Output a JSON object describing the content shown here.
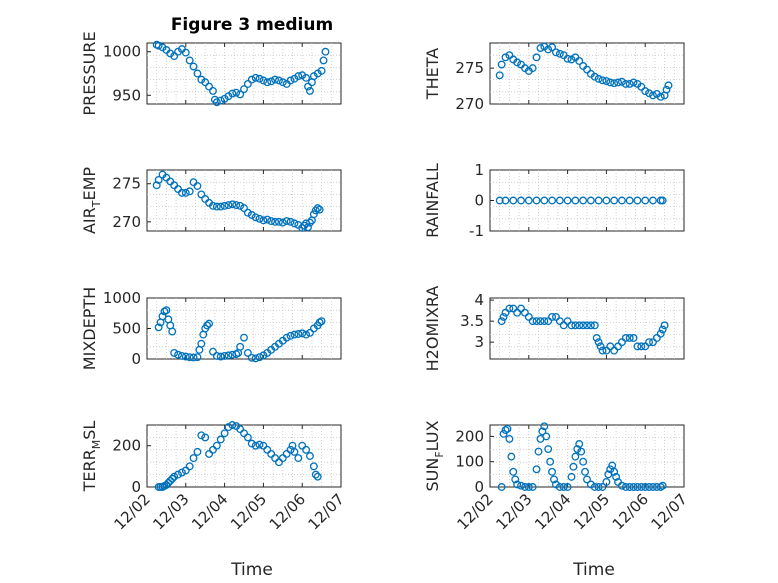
{
  "figure": {
    "title": "Figure 3 medium",
    "x_label": "Time",
    "x_ticks": [
      "12/02",
      "12/03",
      "12/04",
      "12/05",
      "12/06",
      "12/07"
    ],
    "marker_color": "#0072bd"
  },
  "chart_data": [
    {
      "type": "scatter",
      "ylabel": "PRESSURE",
      "ylim": [
        940,
        1010
      ],
      "yticks": [
        "950",
        "1000"
      ],
      "grid": true,
      "x": [
        0.25,
        0.3,
        0.4,
        0.5,
        0.6,
        0.7,
        0.8,
        0.9,
        1.0,
        1.1,
        1.2,
        1.3,
        1.4,
        1.5,
        1.6,
        1.7,
        1.75,
        1.8,
        1.9,
        2.0,
        2.1,
        2.2,
        2.3,
        2.4,
        2.5,
        2.6,
        2.7,
        2.8,
        2.9,
        3.0,
        3.1,
        3.2,
        3.3,
        3.4,
        3.5,
        3.6,
        3.7,
        3.8,
        3.9,
        4.0,
        4.1,
        4.15,
        4.2,
        4.25,
        4.3,
        4.4,
        4.5,
        4.55,
        4.6
      ],
      "y": [
        1008,
        1007,
        1005,
        1002,
        998,
        995,
        1000,
        1003,
        999,
        990,
        983,
        975,
        968,
        965,
        960,
        955,
        945,
        942,
        944,
        946,
        949,
        952,
        953,
        951,
        957,
        963,
        968,
        970,
        969,
        967,
        965,
        966,
        968,
        967,
        965,
        963,
        967,
        969,
        972,
        973,
        970,
        960,
        955,
        965,
        972,
        975,
        978,
        990,
        1000
      ]
    },
    {
      "type": "scatter",
      "ylabel": "THETA",
      "ylim": [
        270,
        278.5
      ],
      "yticks": [
        "270",
        "275"
      ],
      "grid": true,
      "x": [
        0.25,
        0.3,
        0.4,
        0.5,
        0.6,
        0.7,
        0.8,
        0.9,
        1.0,
        1.1,
        1.2,
        1.3,
        1.4,
        1.5,
        1.6,
        1.7,
        1.8,
        1.9,
        2.0,
        2.1,
        2.2,
        2.3,
        2.4,
        2.5,
        2.6,
        2.7,
        2.8,
        2.9,
        3.0,
        3.1,
        3.2,
        3.3,
        3.4,
        3.5,
        3.6,
        3.7,
        3.8,
        3.9,
        4.0,
        4.1,
        4.2,
        4.3,
        4.4,
        4.5,
        4.55,
        4.6
      ],
      "y": [
        274,
        275.5,
        276.5,
        276.8,
        276.2,
        275.8,
        275.5,
        275,
        274.6,
        275,
        276.5,
        277.8,
        278,
        277.6,
        277.9,
        277.2,
        277,
        276.8,
        276.3,
        276.2,
        276.5,
        276,
        275.3,
        274.8,
        274.2,
        273.8,
        273.5,
        273.3,
        273.2,
        273,
        272.9,
        273,
        273.1,
        272.8,
        272.8,
        273,
        272.8,
        272.4,
        271.8,
        271.5,
        271.2,
        271.4,
        271,
        271.2,
        272,
        272.6
      ]
    },
    {
      "type": "scatter",
      "ylabel": "AIR_TEMP",
      "ylim": [
        268.8,
        276.8
      ],
      "yticks": [
        "270",
        "275"
      ],
      "grid": true,
      "x": [
        0.25,
        0.3,
        0.4,
        0.5,
        0.6,
        0.7,
        0.8,
        0.9,
        1.0,
        1.1,
        1.2,
        1.3,
        1.4,
        1.5,
        1.6,
        1.7,
        1.8,
        1.9,
        2.0,
        2.1,
        2.2,
        2.3,
        2.4,
        2.5,
        2.6,
        2.7,
        2.8,
        2.9,
        3.0,
        3.1,
        3.2,
        3.3,
        3.4,
        3.5,
        3.6,
        3.7,
        3.8,
        3.9,
        4.0,
        4.05,
        4.1,
        4.15,
        4.2,
        4.25,
        4.3,
        4.35,
        4.4,
        4.45
      ],
      "y": [
        274.8,
        275.5,
        276.2,
        275.8,
        275.3,
        274.8,
        274.3,
        273.8,
        273.8,
        274,
        275.2,
        274.7,
        273.6,
        273,
        272.5,
        272.1,
        272,
        272,
        272.1,
        272.2,
        272.3,
        272.2,
        272.1,
        271.8,
        271.2,
        270.9,
        270.6,
        270.4,
        270.2,
        270.3,
        270.1,
        270,
        270,
        269.9,
        270.1,
        270,
        269.8,
        269.6,
        269.2,
        269.5,
        269.8,
        269.3,
        269.9,
        270.2,
        271,
        271.5,
        271.8,
        271.6
      ]
    },
    {
      "type": "scatter",
      "ylabel": "RAINFALL",
      "ylim": [
        -1,
        1
      ],
      "yticks": [
        "-1",
        "0",
        "1"
      ],
      "grid": true,
      "x": [
        0.25,
        0.4,
        0.6,
        0.8,
        1.0,
        1.2,
        1.4,
        1.6,
        1.8,
        2.0,
        2.2,
        2.4,
        2.6,
        2.8,
        3.0,
        3.2,
        3.4,
        3.6,
        3.8,
        4.0,
        4.2,
        4.4,
        4.45
      ],
      "y": [
        0,
        0,
        0,
        0,
        0,
        0,
        0,
        0,
        0,
        0,
        0,
        0,
        0,
        0,
        0,
        0,
        0,
        0,
        0,
        0,
        0,
        0,
        0
      ]
    },
    {
      "type": "scatter",
      "ylabel": "MIXDEPTH",
      "ylim": [
        0,
        1000
      ],
      "yticks": [
        "0",
        "500",
        "1000"
      ],
      "grid": true,
      "x": [
        0.3,
        0.35,
        0.4,
        0.45,
        0.5,
        0.55,
        0.6,
        0.65,
        0.7,
        0.8,
        0.9,
        1.0,
        1.1,
        1.2,
        1.3,
        1.35,
        1.4,
        1.45,
        1.5,
        1.55,
        1.6,
        1.7,
        1.8,
        1.9,
        2.0,
        2.1,
        2.2,
        2.3,
        2.35,
        2.4,
        2.5,
        2.6,
        2.7,
        2.8,
        2.9,
        3.0,
        3.1,
        3.2,
        3.3,
        3.4,
        3.5,
        3.6,
        3.7,
        3.8,
        3.9,
        4.0,
        4.1,
        4.2,
        4.3,
        4.4,
        4.45,
        4.5
      ],
      "y": [
        520,
        600,
        700,
        780,
        800,
        650,
        550,
        450,
        100,
        70,
        50,
        40,
        30,
        25,
        30,
        150,
        250,
        400,
        500,
        550,
        580,
        120,
        50,
        40,
        50,
        60,
        70,
        80,
        100,
        200,
        350,
        100,
        20,
        10,
        30,
        60,
        100,
        150,
        200,
        250,
        300,
        350,
        380,
        400,
        410,
        420,
        400,
        430,
        500,
        550,
        600,
        620
      ]
    },
    {
      "type": "scatter",
      "ylabel": "H2OMIXRA",
      "ylim": [
        2.6,
        4.05
      ],
      "yticks": [
        "3",
        "3.5",
        "4"
      ],
      "grid": true,
      "x": [
        0.3,
        0.35,
        0.4,
        0.5,
        0.6,
        0.7,
        0.8,
        0.9,
        1.0,
        1.1,
        1.2,
        1.3,
        1.4,
        1.5,
        1.6,
        1.7,
        1.8,
        1.9,
        2.0,
        2.1,
        2.2,
        2.3,
        2.4,
        2.5,
        2.6,
        2.7,
        2.75,
        2.8,
        2.85,
        2.9,
        3.0,
        3.1,
        3.2,
        3.3,
        3.4,
        3.5,
        3.6,
        3.7,
        3.8,
        3.9,
        4.0,
        4.1,
        4.2,
        4.3,
        4.4,
        4.45,
        4.5
      ],
      "y": [
        3.5,
        3.6,
        3.7,
        3.8,
        3.8,
        3.7,
        3.8,
        3.7,
        3.6,
        3.5,
        3.5,
        3.5,
        3.5,
        3.5,
        3.6,
        3.6,
        3.5,
        3.4,
        3.5,
        3.4,
        3.4,
        3.4,
        3.4,
        3.4,
        3.4,
        3.4,
        3.1,
        3.0,
        2.9,
        2.8,
        2.8,
        2.9,
        2.8,
        2.9,
        3.0,
        3.1,
        3.1,
        3.1,
        2.9,
        2.9,
        2.9,
        3.0,
        3.0,
        3.1,
        3.2,
        3.3,
        3.4
      ]
    },
    {
      "type": "scatter",
      "ylabel": "TERR_MSL",
      "ylim": [
        0,
        300
      ],
      "yticks": [
        "0",
        "200"
      ],
      "grid": true,
      "x": [
        0.3,
        0.35,
        0.4,
        0.45,
        0.5,
        0.55,
        0.6,
        0.65,
        0.7,
        0.8,
        0.9,
        1.0,
        1.1,
        1.2,
        1.3,
        1.4,
        1.5,
        1.6,
        1.7,
        1.8,
        1.9,
        2.0,
        2.1,
        2.2,
        2.3,
        2.4,
        2.5,
        2.6,
        2.7,
        2.8,
        2.9,
        3.0,
        3.1,
        3.2,
        3.3,
        3.4,
        3.5,
        3.6,
        3.7,
        3.75,
        3.8,
        3.9,
        4.0,
        4.1,
        4.2,
        4.3,
        4.35,
        4.4
      ],
      "y": [
        0,
        0,
        0,
        5,
        10,
        20,
        30,
        40,
        50,
        60,
        70,
        80,
        100,
        140,
        170,
        250,
        240,
        160,
        180,
        200,
        230,
        260,
        290,
        300,
        295,
        280,
        260,
        240,
        210,
        200,
        205,
        200,
        180,
        160,
        140,
        120,
        140,
        160,
        180,
        200,
        170,
        140,
        200,
        180,
        150,
        100,
        60,
        50
      ]
    },
    {
      "type": "scatter",
      "ylabel": "SUN_FLUX",
      "ylim": [
        0,
        245
      ],
      "yticks": [
        "0",
        "100",
        "200"
      ],
      "grid": true,
      "x": [
        0.3,
        0.35,
        0.4,
        0.45,
        0.5,
        0.55,
        0.6,
        0.65,
        0.7,
        0.8,
        0.9,
        1.0,
        1.1,
        1.2,
        1.25,
        1.3,
        1.35,
        1.4,
        1.45,
        1.5,
        1.55,
        1.6,
        1.65,
        1.7,
        1.8,
        1.9,
        2.0,
        2.1,
        2.15,
        2.2,
        2.25,
        2.3,
        2.35,
        2.4,
        2.45,
        2.5,
        2.6,
        2.7,
        2.8,
        2.9,
        3.0,
        3.05,
        3.1,
        3.15,
        3.2,
        3.25,
        3.3,
        3.4,
        3.5,
        3.6,
        3.7,
        3.8,
        3.9,
        4.0,
        4.1,
        4.2,
        4.3,
        4.4,
        4.45
      ],
      "y": [
        0,
        210,
        225,
        230,
        190,
        120,
        60,
        30,
        10,
        5,
        0,
        0,
        0,
        70,
        140,
        190,
        220,
        240,
        200,
        150,
        100,
        60,
        30,
        10,
        0,
        0,
        0,
        40,
        80,
        120,
        150,
        170,
        140,
        100,
        60,
        30,
        10,
        0,
        0,
        0,
        20,
        50,
        70,
        85,
        60,
        40,
        20,
        5,
        0,
        0,
        0,
        0,
        0,
        0,
        0,
        0,
        0,
        0,
        5
      ]
    }
  ]
}
